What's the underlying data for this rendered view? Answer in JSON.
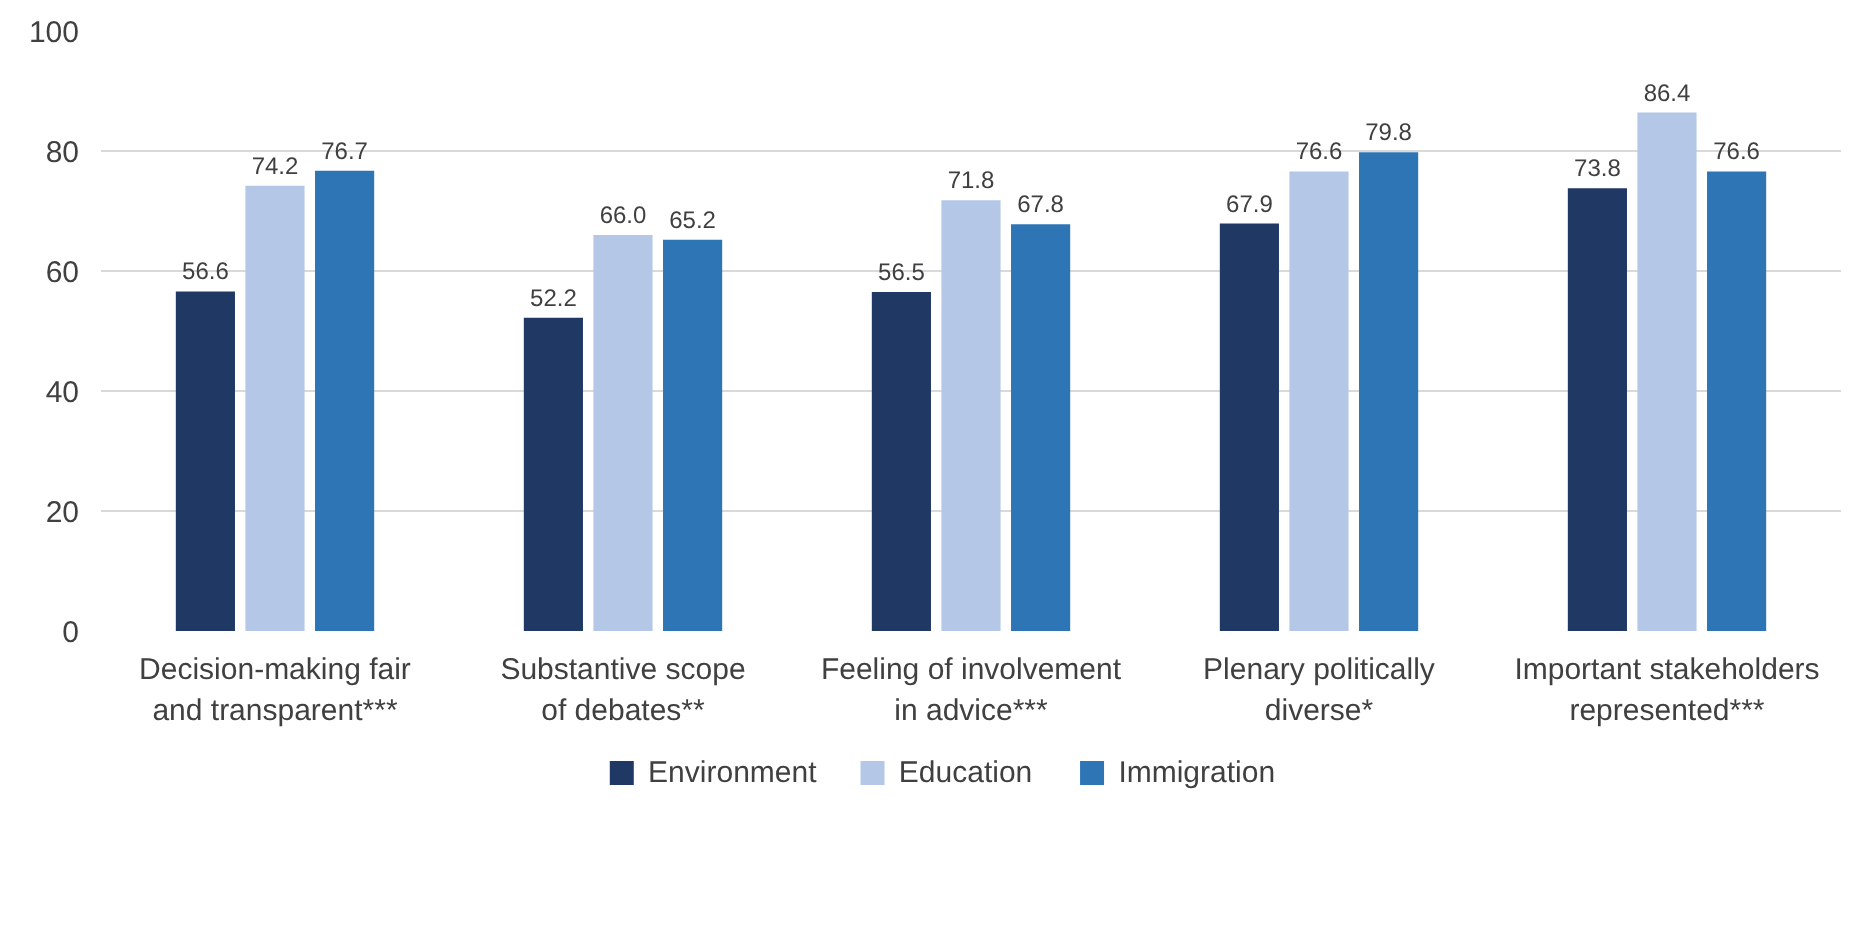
{
  "chart_data": {
    "type": "bar",
    "categories": [
      "Decision-making fair and transparent***",
      "Substantive scope of debates**",
      "Feeling of involvement in advice***",
      "Plenary politically diverse*",
      "Important stakeholders represented***"
    ],
    "series": [
      {
        "name": "Environment",
        "color": "#203864",
        "values": [
          56.6,
          52.2,
          56.5,
          67.9,
          73.8
        ],
        "value_labels": [
          "56.6",
          "52.2",
          "56.5",
          "67.9",
          "73.8"
        ]
      },
      {
        "name": "Education",
        "color": "#b4c7e7",
        "values": [
          74.2,
          66.0,
          71.8,
          76.6,
          86.4
        ],
        "value_labels": [
          "74.2",
          "66.0",
          "71.8",
          "76.6",
          "86.4"
        ]
      },
      {
        "name": "Immigration",
        "color": "#2e75b6",
        "values": [
          76.7,
          65.2,
          67.8,
          79.8,
          76.6
        ],
        "value_labels": [
          "76.7",
          "65.2",
          "67.8",
          "79.8",
          "76.6"
        ]
      }
    ],
    "ylim": [
      0,
      100
    ],
    "yticks": [
      0,
      20,
      40,
      60,
      80,
      100
    ],
    "grid": "y",
    "legend": "bottom"
  }
}
